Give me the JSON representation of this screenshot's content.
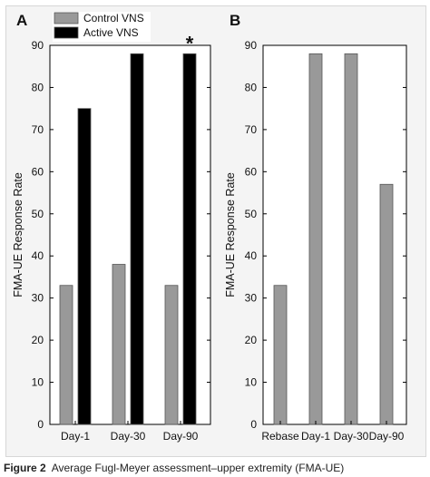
{
  "chart_data": [
    {
      "panel_label": "A",
      "type": "bar",
      "categories": [
        "Day-1",
        "Day-30",
        "Day-90"
      ],
      "series": [
        {
          "name": "Control VNS",
          "color": "#999999",
          "values": [
            33,
            38,
            33
          ]
        },
        {
          "name": "Active VNS",
          "color": "#000000",
          "values": [
            75,
            88,
            88
          ]
        }
      ],
      "ylabel": "FMA-UE Response Rate",
      "ylim": [
        0,
        90
      ],
      "yticks": [
        0,
        10,
        20,
        30,
        40,
        50,
        60,
        70,
        80,
        90
      ],
      "legend": "top-left",
      "annotation": {
        "text": "*",
        "category": "Day-90"
      }
    },
    {
      "panel_label": "B",
      "type": "bar",
      "categories": [
        "Rebase",
        "Day-1",
        "Day-30",
        "Day-90"
      ],
      "series": [
        {
          "color": "#999999",
          "values": [
            33,
            88,
            88,
            57
          ]
        }
      ],
      "ylabel": "FMA-UE Response Rate",
      "ylim": [
        0,
        90
      ],
      "yticks": [
        0,
        10,
        20,
        30,
        40,
        50,
        60,
        70,
        80,
        90
      ]
    }
  ],
  "caption": {
    "label": "Figure 2",
    "text": "Average Fugl-Meyer assessment–upper extremity (FMA-UE)"
  }
}
